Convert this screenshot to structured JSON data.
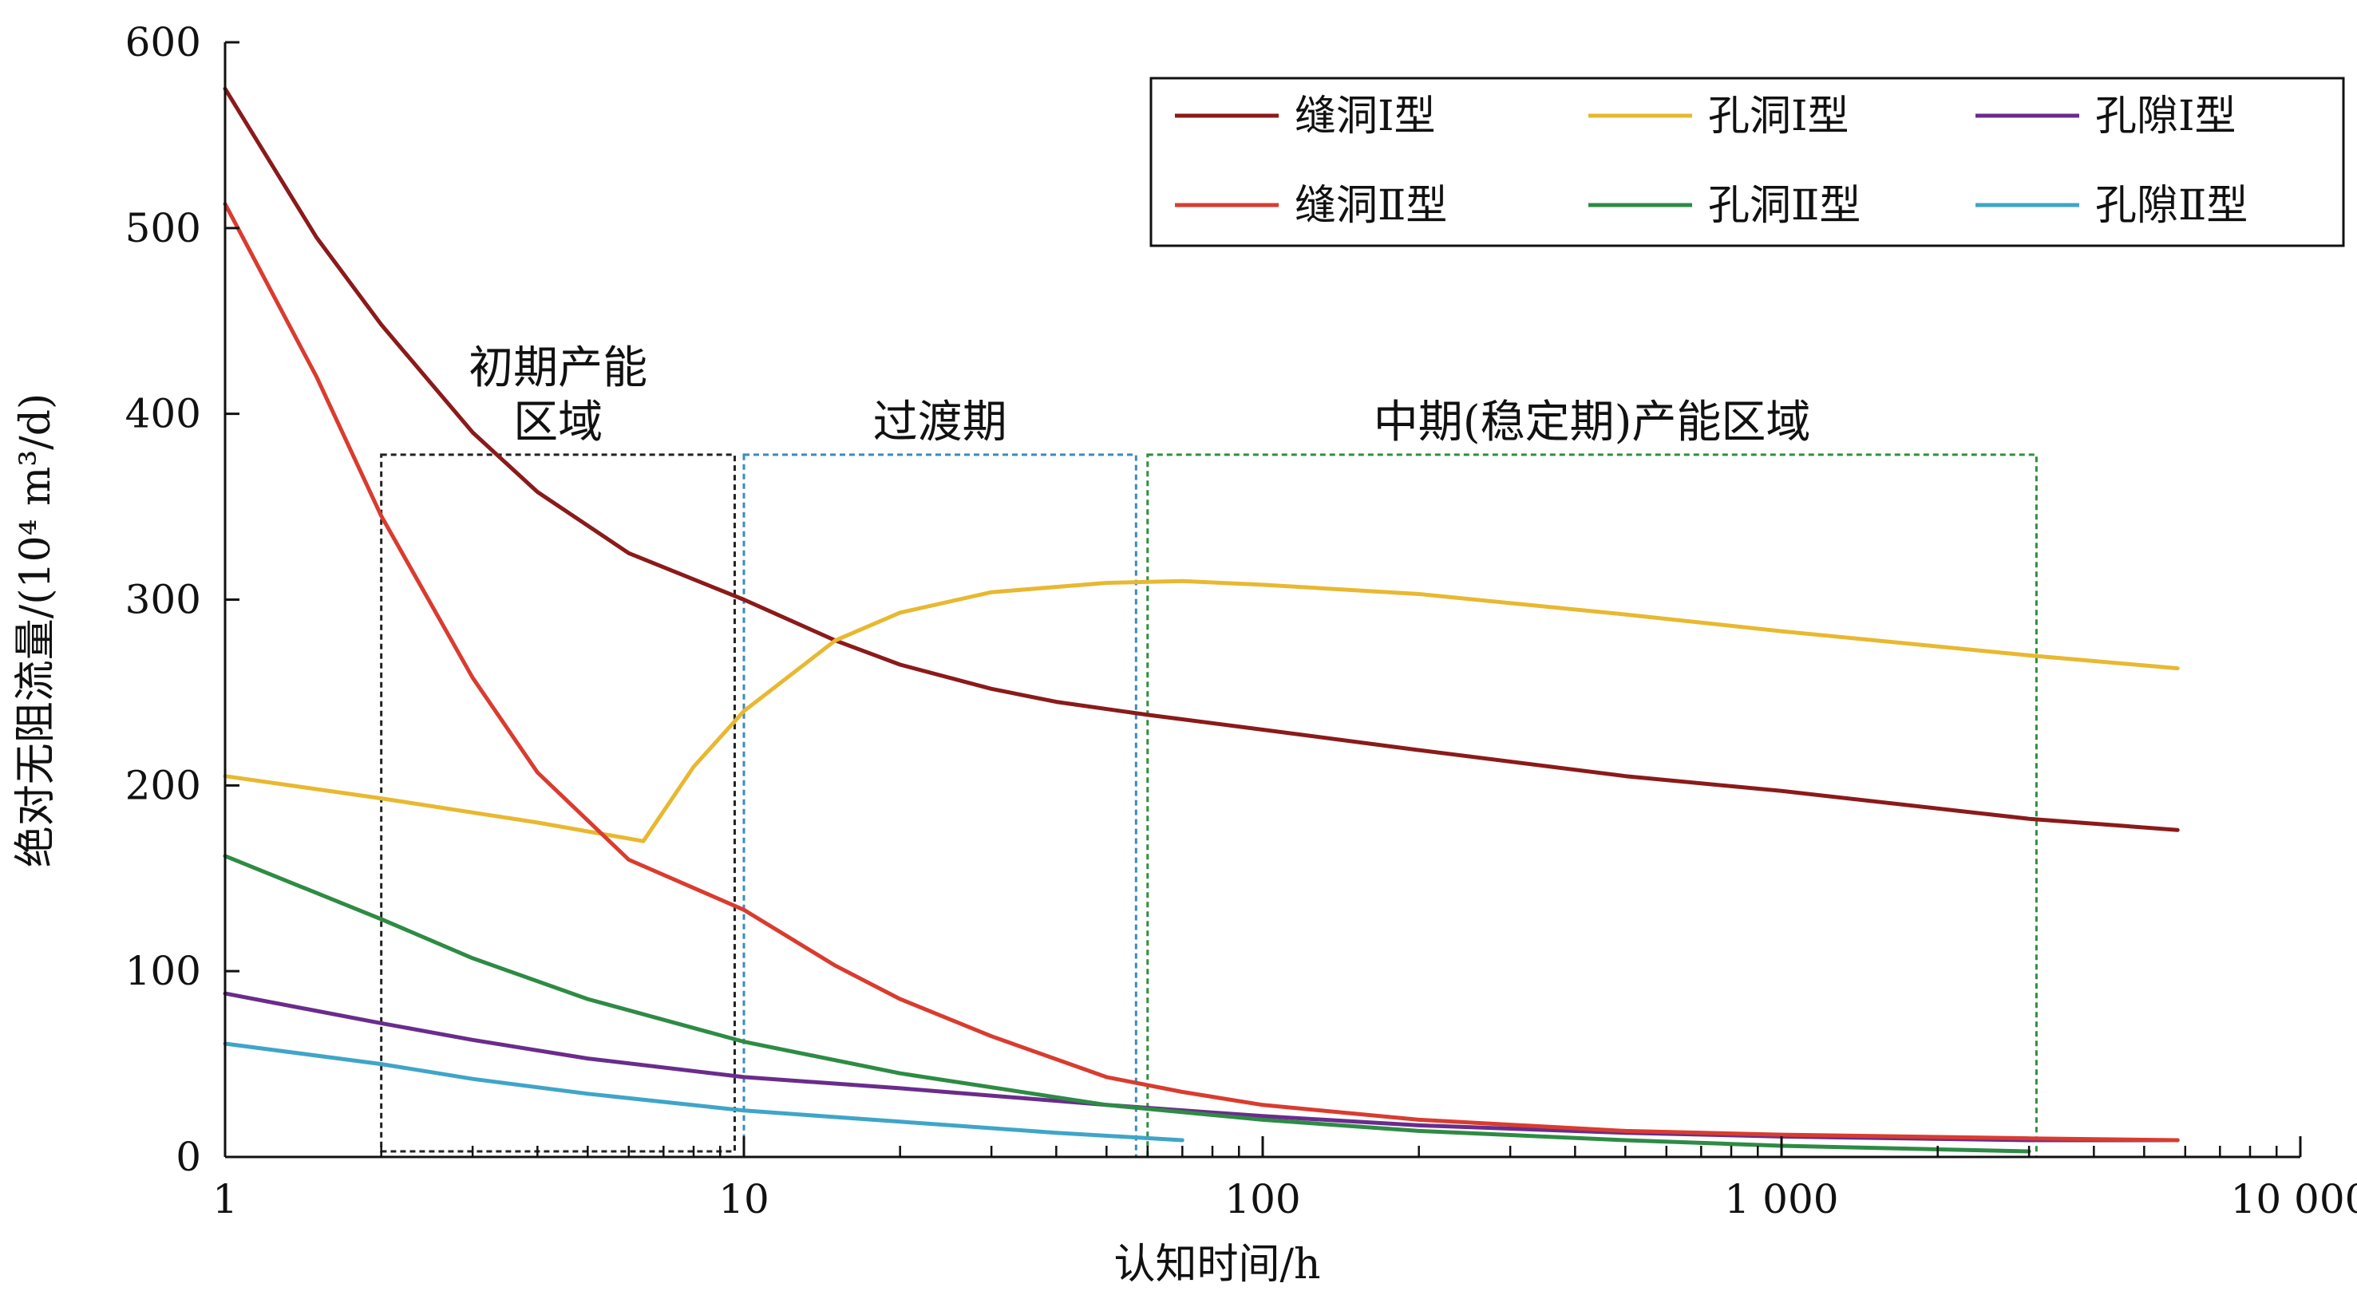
{
  "chart_data": {
    "type": "line",
    "title": "",
    "xlabel": "认知时间/h",
    "ylabel": "绝对无阻流量/(10⁴ m³/d)",
    "x_scale": "log",
    "xlim": [
      1,
      10000
    ],
    "ylim": [
      0,
      600
    ],
    "x_ticks": [
      {
        "value": 1,
        "label": "1"
      },
      {
        "value": 10,
        "label": "10"
      },
      {
        "value": 100,
        "label": "100"
      },
      {
        "value": 1000,
        "label": "1 000"
      },
      {
        "value": 10000,
        "label": "10 000"
      }
    ],
    "y_ticks": [
      {
        "value": 0,
        "label": "0"
      },
      {
        "value": 100,
        "label": "100"
      },
      {
        "value": 200,
        "label": "200"
      },
      {
        "value": 300,
        "label": "300"
      },
      {
        "value": 400,
        "label": "400"
      },
      {
        "value": 500,
        "label": "500"
      },
      {
        "value": 600,
        "label": "600"
      }
    ],
    "grid": false,
    "legend_position": "top-right",
    "series": [
      {
        "name": "缝洞Ⅰ型",
        "color": "#8b1a1a",
        "x": [
          1,
          1.5,
          2,
          3,
          4,
          6,
          10,
          15,
          20,
          30,
          40,
          60,
          100,
          200,
          500,
          1000,
          3000,
          5800
        ],
        "y": [
          575,
          495,
          448,
          390,
          358,
          325,
          300,
          278,
          265,
          252,
          245,
          238,
          230,
          219,
          205,
          197,
          182,
          176
        ]
      },
      {
        "name": "孔洞Ⅰ型",
        "color": "#e8b830",
        "x": [
          1,
          2,
          4,
          6.4,
          8,
          10,
          15,
          20,
          30,
          50,
          70,
          100,
          200,
          500,
          1000,
          3000,
          5800
        ],
        "y": [
          205,
          193,
          180,
          170,
          210,
          240,
          278,
          293,
          304,
          309,
          310,
          308,
          303,
          292,
          283,
          270,
          263
        ]
      },
      {
        "name": "孔隙Ⅰ型",
        "color": "#6a2c8c",
        "x": [
          1,
          2,
          3,
          5,
          10,
          20,
          50,
          100,
          200,
          500,
          1000,
          3000,
          5800
        ],
        "y": [
          88,
          72,
          63,
          53,
          43,
          37,
          28,
          22,
          17,
          13,
          11,
          9,
          9
        ]
      },
      {
        "name": "缝洞Ⅱ型",
        "color": "#d93c2f",
        "x": [
          1,
          1.5,
          2,
          3,
          4,
          6,
          10,
          15,
          20,
          30,
          50,
          70,
          100,
          200,
          500,
          1000,
          3000,
          5800
        ],
        "y": [
          513,
          420,
          345,
          258,
          207,
          160,
          133,
          103,
          85,
          65,
          43,
          35,
          28,
          20,
          14,
          12,
          10,
          9
        ]
      },
      {
        "name": "孔洞Ⅱ型",
        "color": "#2e8b44",
        "x": [
          1,
          2,
          3,
          5,
          10,
          20,
          50,
          100,
          200,
          500,
          1000,
          3000
        ],
        "y": [
          162,
          128,
          107,
          85,
          62,
          45,
          28,
          20,
          14,
          9,
          6,
          3
        ]
      },
      {
        "name": "孔隙Ⅱ型",
        "color": "#3fa5c8",
        "x": [
          1,
          2,
          3,
          5,
          10,
          20,
          40,
          70
        ],
        "y": [
          61,
          50,
          42,
          34,
          25,
          19,
          13,
          9
        ]
      }
    ],
    "regions": [
      {
        "label_lines": [
          "初期产能",
          "区域"
        ],
        "x_range": [
          2,
          9.6
        ],
        "y_range": [
          3,
          378
        ],
        "color": "#222222"
      },
      {
        "label_lines": [
          "过渡期"
        ],
        "x_range": [
          10,
          57
        ],
        "y_range": [
          0,
          378
        ],
        "color": "#3a8bbf"
      },
      {
        "label_lines": [
          "中期(稳定期)产能区域"
        ],
        "x_range": [
          60,
          3100
        ],
        "y_range": [
          0,
          378
        ],
        "color": "#2f8f3f"
      }
    ]
  }
}
